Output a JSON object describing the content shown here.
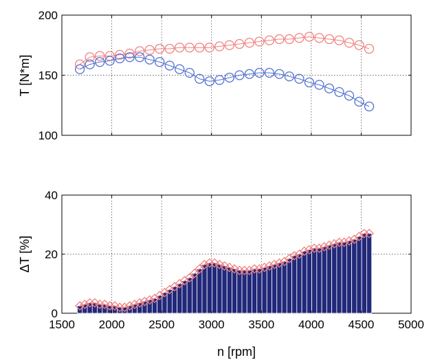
{
  "chart_data": [
    {
      "type": "line",
      "ylabel": "T [N*m]",
      "xlim": [
        1500,
        5000
      ],
      "ylim": [
        100,
        200
      ],
      "yticks": [
        "100",
        "150",
        "200"
      ],
      "xticks": [
        1500,
        2000,
        2500,
        3000,
        3500,
        4000,
        4500,
        5000
      ],
      "grid": true,
      "x": [
        1680,
        1780,
        1880,
        1980,
        2080,
        2180,
        2280,
        2380,
        2480,
        2580,
        2680,
        2780,
        2880,
        2980,
        3080,
        3180,
        3280,
        3380,
        3480,
        3580,
        3680,
        3780,
        3880,
        3980,
        4080,
        4180,
        4280,
        4380,
        4480,
        4580
      ],
      "series": [
        {
          "color": "#f08080",
          "marker": "circle",
          "values": [
            159,
            165,
            166,
            166,
            167,
            168,
            170,
            171,
            172,
            172,
            173,
            173,
            173,
            173,
            174,
            175,
            176,
            177,
            178,
            179,
            180,
            180,
            181,
            182,
            181,
            180,
            179,
            177,
            175,
            172
          ]
        },
        {
          "color": "#4f6fd0",
          "marker": "circle",
          "values": [
            155,
            159,
            161,
            162,
            164,
            165,
            165,
            163,
            161,
            158,
            155,
            152,
            147,
            145,
            146,
            148,
            150,
            151,
            152,
            152,
            151,
            149,
            147,
            144,
            142,
            139,
            136,
            133,
            128,
            124
          ]
        }
      ]
    },
    {
      "type": "bar",
      "ylabel": "ΔT [%]",
      "xlabel": "n [rpm]",
      "xlim": [
        1500,
        5000
      ],
      "ylim": [
        0,
        40
      ],
      "yticks": [
        "0",
        "20",
        "40"
      ],
      "xticks": [
        "1500",
        "2000",
        "2500",
        "3000",
        "3500",
        "4000",
        "4500",
        "5000"
      ],
      "grid": true,
      "bar_color": "#22287a",
      "marker_color": "#f08080",
      "marker": "diamond",
      "x": [
        1680,
        1730,
        1780,
        1830,
        1880,
        1930,
        1980,
        2030,
        2080,
        2130,
        2180,
        2230,
        2280,
        2330,
        2380,
        2430,
        2480,
        2530,
        2580,
        2630,
        2680,
        2730,
        2780,
        2830,
        2880,
        2930,
        2980,
        3030,
        3080,
        3130,
        3180,
        3230,
        3280,
        3330,
        3380,
        3430,
        3480,
        3530,
        3580,
        3630,
        3680,
        3730,
        3780,
        3830,
        3880,
        3930,
        3980,
        4030,
        4080,
        4130,
        4180,
        4230,
        4280,
        4330,
        4380,
        4430,
        4480,
        4530,
        4580
      ],
      "values": [
        2.5,
        3,
        3.5,
        3.5,
        3,
        3,
        2.5,
        2.5,
        2,
        2,
        2.5,
        3,
        3.5,
        4,
        4.5,
        5,
        6,
        7,
        8,
        9,
        10,
        11,
        12,
        13.5,
        15,
        16.5,
        17,
        17,
        16.5,
        16,
        15.5,
        15,
        14.5,
        14.5,
        14.5,
        15,
        15,
        15.5,
        16,
        16.5,
        17,
        17.5,
        18.5,
        19.5,
        20,
        21,
        21.5,
        22,
        22,
        22.5,
        23,
        23.5,
        24,
        24,
        24.5,
        25,
        26,
        27,
        27
      ]
    }
  ]
}
